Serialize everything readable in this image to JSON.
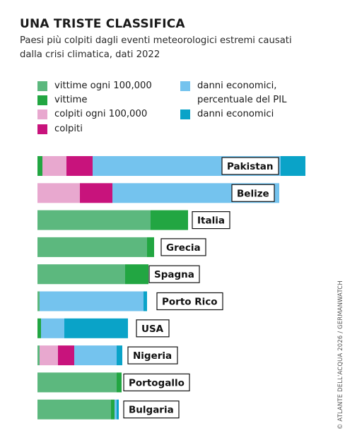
{
  "title": "UNA TRISTE CLASSIFICA",
  "subtitle_line1": "Paesi più colpiti dagli eventi meteorologici estremi causati",
  "subtitle_line2": "dalla crisi climatica, dati 2022",
  "credit": "© ATLANTE DELL'ACQUA 2026 / GERMANWATCH",
  "legend": [
    {
      "key": "vittime_100k",
      "label": "vittime ogni 100,000",
      "color": "#5cb87e"
    },
    {
      "key": "vittime",
      "label": "vittime",
      "color": "#22a642"
    },
    {
      "key": "colpiti_100k",
      "label": "colpiti ogni 100,000",
      "color": "#e8a8cf"
    },
    {
      "key": "colpiti",
      "label": "colpiti",
      "color": "#c8137c"
    },
    {
      "key": "danni_pil",
      "label_line1": "danni economici,",
      "label_line2": "percentuale del PIL",
      "color": "#74c3ee"
    },
    {
      "key": "danni",
      "label": "danni economici",
      "color": "#0aa3c8"
    }
  ],
  "chart_data": {
    "type": "bar",
    "stacked": true,
    "orientation": "horizontal",
    "categories": [
      "Pakistan",
      "Belize",
      "Italia",
      "Grecia",
      "Spagna",
      "Porto Rico",
      "USA",
      "Nigeria",
      "Portogallo",
      "Bulgaria"
    ],
    "series": [
      {
        "name": "vittime ogni 100,000",
        "color": "#5cb87e",
        "values": [
          0,
          0,
          160,
          155,
          124,
          3,
          0,
          3,
          112,
          104
        ]
      },
      {
        "name": "vittime",
        "color": "#22a642",
        "values": [
          7,
          0,
          53,
          10,
          33,
          0,
          5,
          0,
          7,
          5
        ]
      },
      {
        "name": "colpiti ogni 100,000",
        "color": "#e8a8cf",
        "values": [
          34,
          60,
          0,
          0,
          0,
          0,
          0,
          26,
          0,
          0
        ]
      },
      {
        "name": "colpiti",
        "color": "#c8137c",
        "values": [
          37,
          46,
          0,
          0,
          0,
          0,
          0,
          23,
          0,
          0
        ]
      },
      {
        "name": "danni economici, percentuale del PIL",
        "color": "#74c3ee",
        "values": [
          266,
          236,
          0,
          0,
          0,
          147,
          33,
          60,
          0,
          3
        ]
      },
      {
        "name": "danni economici",
        "color": "#0aa3c8",
        "values": [
          35,
          0,
          0,
          0,
          0,
          5,
          90,
          8,
          0,
          3
        ]
      }
    ]
  }
}
